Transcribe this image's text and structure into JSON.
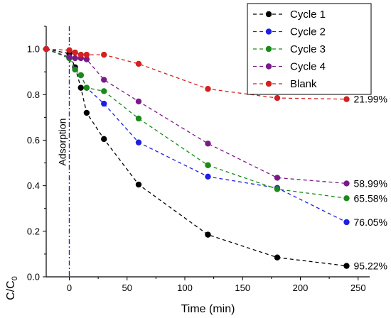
{
  "chart_data": {
    "type": "line",
    "xlabel": "Time (min)",
    "ylabel": "C/C",
    "ylabel_sub": "0",
    "xlim": [
      -20,
      260
    ],
    "ylim": [
      0.0,
      1.1
    ],
    "xticks": [
      0,
      50,
      100,
      150,
      200,
      250
    ],
    "yticks": [
      0.0,
      0.2,
      0.4,
      0.6,
      0.8,
      1.0
    ],
    "xtick_labels": [
      "0",
      "50",
      "100",
      "150",
      "200",
      "250"
    ],
    "ytick_labels": [
      "0.0",
      "0.2",
      "0.4",
      "0.6",
      "0.8",
      "1.0"
    ],
    "grid": false,
    "legend_position": "top-right",
    "annotation": {
      "text": "Adsorption",
      "x": 0
    },
    "series": [
      {
        "name": "Cycle 1",
        "color": "#000000",
        "x": [
          -20,
          0,
          5,
          10,
          15,
          30,
          60,
          120,
          180,
          240
        ],
        "y": [
          1.0,
          0.98,
          0.92,
          0.83,
          0.72,
          0.605,
          0.405,
          0.185,
          0.085,
          0.048
        ],
        "end_label": "95.22%"
      },
      {
        "name": "Cycle 2",
        "color": "#1f1fe0",
        "x": [
          -20,
          0,
          5,
          10,
          15,
          30,
          60,
          120,
          180,
          240
        ],
        "y": [
          1.0,
          0.96,
          0.91,
          0.885,
          0.83,
          0.76,
          0.59,
          0.44,
          0.39,
          0.24
        ],
        "end_label": "76.05%"
      },
      {
        "name": "Cycle 3",
        "color": "#1a8a1a",
        "x": [
          -20,
          0,
          5,
          10,
          15,
          30,
          60,
          120,
          180,
          240
        ],
        "y": [
          1.0,
          0.96,
          0.91,
          0.885,
          0.83,
          0.815,
          0.695,
          0.49,
          0.385,
          0.345
        ],
        "end_label": "65.58%"
      },
      {
        "name": "Cycle 4",
        "color": "#7a1a8a",
        "x": [
          -20,
          0,
          5,
          10,
          15,
          30,
          60,
          120,
          180,
          240
        ],
        "y": [
          1.0,
          0.965,
          0.96,
          0.96,
          0.955,
          0.865,
          0.77,
          0.585,
          0.435,
          0.41
        ],
        "end_label": "58.99%"
      },
      {
        "name": "Blank",
        "color": "#d42020",
        "x": [
          -20,
          0,
          5,
          10,
          15,
          30,
          60,
          120,
          180,
          240
        ],
        "y": [
          1.0,
          0.995,
          0.985,
          0.975,
          0.975,
          0.975,
          0.935,
          0.825,
          0.785,
          0.78
        ],
        "end_label": "21.99%"
      }
    ]
  }
}
